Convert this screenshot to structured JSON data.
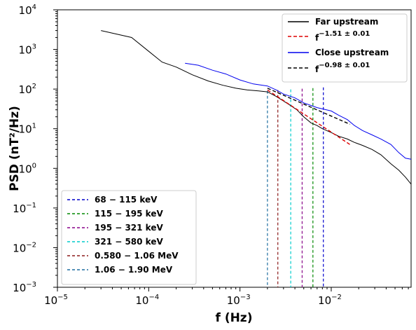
{
  "chart_data": {
    "type": "line",
    "xscale": "log",
    "yscale": "log",
    "xlim": [
      1e-05,
      0.075
    ],
    "ylim": [
      0.001,
      10000
    ],
    "xlabel": "f (Hz)",
    "ylabel": "PSD (nT²/Hz)",
    "x_ticks": [
      {
        "value": 1e-05,
        "label_base": "10",
        "label_exp": "−5"
      },
      {
        "value": 0.0001,
        "label_base": "10",
        "label_exp": "−4"
      },
      {
        "value": 0.001,
        "label_base": "10",
        "label_exp": "−3"
      },
      {
        "value": 0.01,
        "label_base": "10",
        "label_exp": "−2"
      }
    ],
    "y_ticks": [
      {
        "value": 0.001,
        "label_base": "10",
        "label_exp": "−3"
      },
      {
        "value": 0.01,
        "label_base": "10",
        "label_exp": "−2"
      },
      {
        "value": 0.1,
        "label_base": "10",
        "label_exp": "−1"
      },
      {
        "value": 1,
        "label_base": "10",
        "label_exp": "0"
      },
      {
        "value": 10,
        "label_base": "10",
        "label_exp": "1"
      },
      {
        "value": 100,
        "label_base": "10",
        "label_exp": "2"
      },
      {
        "value": 1000,
        "label_base": "10",
        "label_exp": "3"
      },
      {
        "value": 10000,
        "label_base": "10",
        "label_exp": "4"
      }
    ],
    "series": [
      {
        "name": "Far upstream",
        "color": "#000000",
        "style": "solid",
        "x": [
          3e-05,
          6.5e-05,
          0.0001,
          0.00014,
          0.0002,
          0.0003,
          0.00045,
          0.00065,
          0.0009,
          0.0012,
          0.0016,
          0.002,
          0.0025,
          0.003,
          0.0035,
          0.0042,
          0.005,
          0.006,
          0.007,
          0.008,
          0.01,
          0.012,
          0.015,
          0.018,
          0.022,
          0.028,
          0.035,
          0.045,
          0.055,
          0.065,
          0.075
        ],
        "y": [
          3000,
          2000,
          900,
          480,
          360,
          230,
          160,
          125,
          105,
          95,
          90,
          85,
          65,
          50,
          40,
          30,
          20,
          14,
          12,
          10,
          8,
          6.5,
          5.5,
          4.5,
          3.8,
          3.0,
          2.2,
          1.3,
          0.9,
          0.6,
          0.4
        ]
      },
      {
        "name": "f^{−1.51±0.01}",
        "color": "#dd0000",
        "style": "dashed",
        "x": [
          0.002,
          0.016
        ],
        "y": [
          95,
          4.0
        ]
      },
      {
        "name": "Close upstream",
        "color": "#0000ee",
        "style": "solid",
        "x": [
          0.00025,
          0.00035,
          0.0005,
          0.0007,
          0.001,
          0.0014,
          0.002,
          0.0025,
          0.003,
          0.004,
          0.005,
          0.007,
          0.01,
          0.012,
          0.015,
          0.018,
          0.022,
          0.028,
          0.035,
          0.045,
          0.055,
          0.065,
          0.075
        ],
        "y": [
          450,
          400,
          300,
          240,
          170,
          135,
          120,
          95,
          75,
          60,
          45,
          34,
          28,
          22,
          17,
          12,
          9,
          7,
          5.5,
          4.0,
          2.5,
          1.8,
          1.7
        ]
      },
      {
        "name": "f^{−0.98±0.01}",
        "color": "#000000",
        "style": "dashed",
        "x": [
          0.002,
          0.016
        ],
        "y": [
          105,
          13
        ]
      }
    ],
    "bands": [
      {
        "label": "68 − 115 keV",
        "color": "#0000cc",
        "x": 0.0082
      },
      {
        "label": "115 − 195 keV",
        "color": "#008800",
        "x": 0.0063
      },
      {
        "label": "195 − 321 keV",
        "color": "#880088",
        "x": 0.0048
      },
      {
        "label": "321 − 580 keV",
        "color": "#00cccc",
        "x": 0.0036
      },
      {
        "label": "0.580 − 1.06 MeV",
        "color": "#8b1a1a",
        "x": 0.0026
      },
      {
        "label": "1.06 − 1.90 MeV",
        "color": "#1f6fa0",
        "x": 0.002
      }
    ],
    "legend_top": {
      "placement": "top-right",
      "entries": [
        {
          "label": "Far upstream",
          "color": "#000000",
          "style": "solid"
        },
        {
          "label_base": "f",
          "label_exp": "−1.51 ± 0.01",
          "color": "#dd0000",
          "style": "dashed"
        },
        {
          "label": "Close upstream",
          "color": "#0000ee",
          "style": "solid"
        },
        {
          "label_base": "f",
          "label_exp": "−0.98 ± 0.01",
          "color": "#000000",
          "style": "dashed"
        }
      ]
    },
    "legend_bottom": {
      "placement": "bottom-left"
    }
  }
}
